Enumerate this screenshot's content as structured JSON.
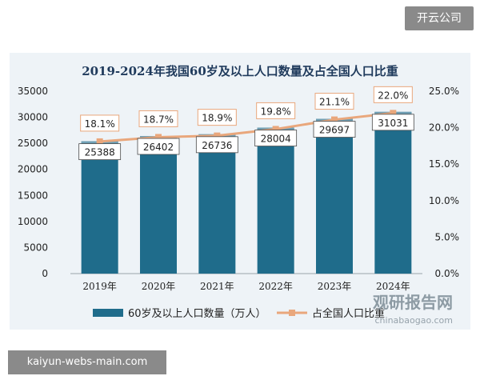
{
  "corner_tag": "开云公司",
  "footer_url": "kaiyun-webs-main.com",
  "watermark": {
    "main": "观研报告网",
    "sub": "chinabaogao.com"
  },
  "colors": {
    "bar": "#1f6c8b",
    "line": "#e9a77c",
    "frame": "#eef3f7",
    "title": "#1f3a5c"
  },
  "chart_data": {
    "type": "bar",
    "title": "2019-2024年我国60岁及以上人口数量及占全国人口比重",
    "categories": [
      "2019年",
      "2020年",
      "2021年",
      "2022年",
      "2023年",
      "2024年"
    ],
    "series": [
      {
        "name": "60岁及以上人口数量（万人）",
        "type": "bar",
        "axis": "left",
        "values": [
          25388,
          26402,
          26736,
          28004,
          29697,
          31031
        ],
        "labels": [
          "25388",
          "26402",
          "26736",
          "28004",
          "29697",
          "31031"
        ]
      },
      {
        "name": "占全国人口比重",
        "type": "line",
        "axis": "right",
        "values": [
          18.1,
          18.7,
          18.9,
          19.8,
          21.1,
          22.0
        ],
        "labels": [
          "18.1%",
          "18.7%",
          "18.9%",
          "19.8%",
          "21.1%",
          "22.0%"
        ]
      }
    ],
    "y_left": {
      "min": 0,
      "max": 35000,
      "ticks": [
        "0",
        "5000",
        "10000",
        "15000",
        "20000",
        "25000",
        "30000",
        "35000"
      ]
    },
    "y_right": {
      "min": 0,
      "max": 25,
      "ticks": [
        "0.0%",
        "5.0%",
        "10.0%",
        "15.0%",
        "20.0%",
        "25.0%"
      ]
    },
    "grid": false,
    "legend_position": "bottom"
  }
}
